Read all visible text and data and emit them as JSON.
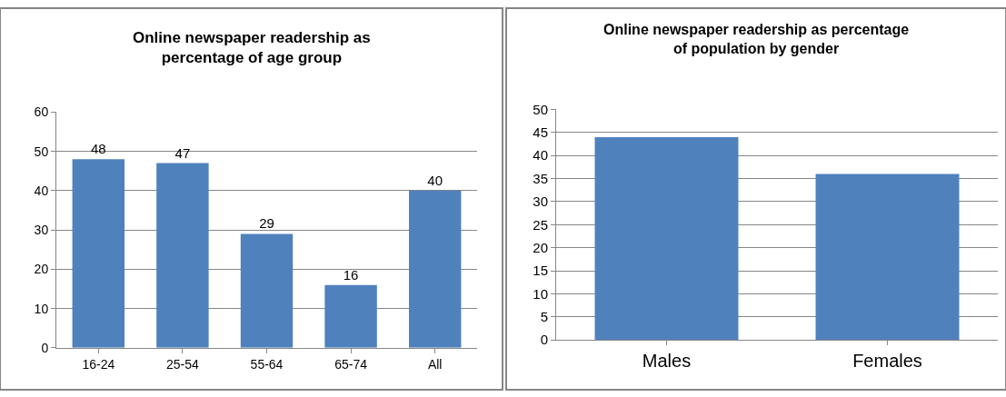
{
  "chart_data": [
    {
      "type": "bar",
      "title": "Online newspaper readership as\npercentage of age group",
      "categories": [
        "16-24",
        "25-54",
        "55-64",
        "65-74",
        "All"
      ],
      "values": [
        48,
        47,
        29,
        16,
        40
      ],
      "color": "#4f81bd",
      "ylim": [
        0,
        60
      ],
      "yticks": [
        0,
        10,
        20,
        30,
        40,
        50,
        60
      ],
      "grid": "y",
      "data_labels": true
    },
    {
      "type": "bar",
      "title": "Online newspaper readership as percentage\nof population by gender",
      "categories": [
        "Males",
        "Females"
      ],
      "values": [
        44,
        36
      ],
      "color": "#4f81bd",
      "ylim": [
        0,
        50
      ],
      "yticks": [
        0,
        5,
        10,
        15,
        20,
        25,
        30,
        35,
        40,
        45,
        50
      ],
      "grid": "y"
    }
  ]
}
